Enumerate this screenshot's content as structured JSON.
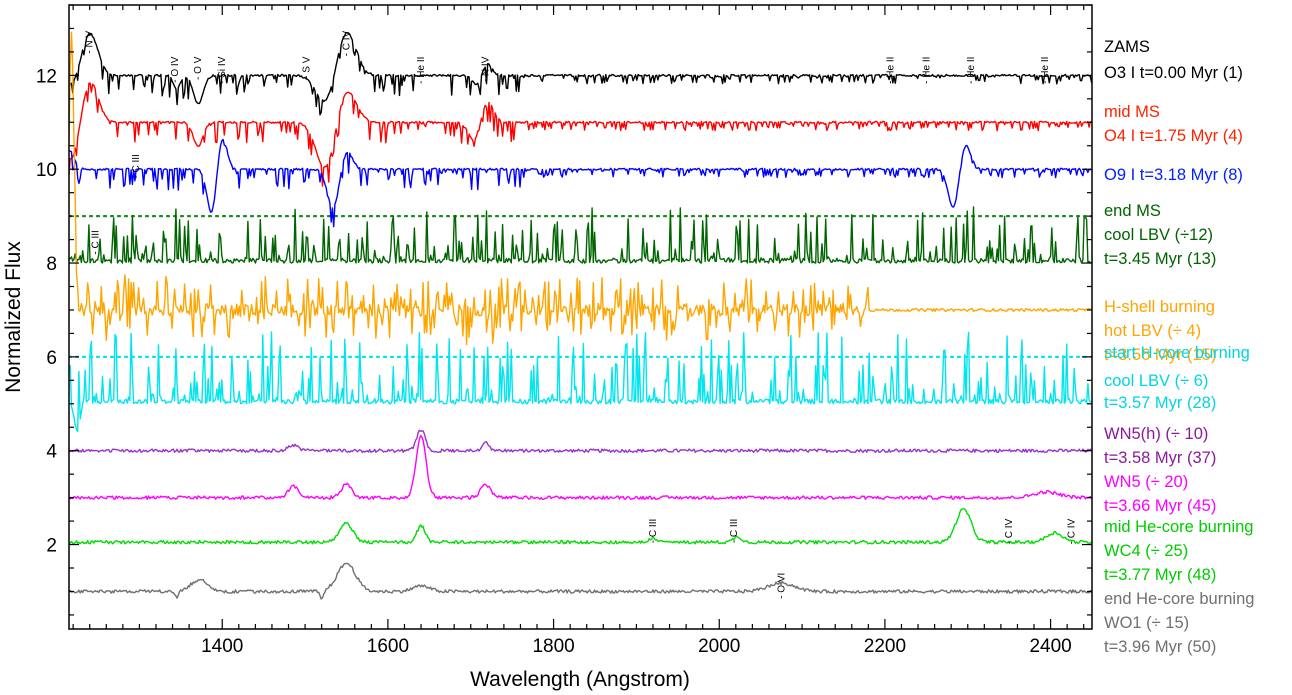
{
  "chart_data": {
    "type": "line",
    "xlabel": "Wavelength (Angstrom)",
    "ylabel": "Normalized Flux",
    "xlim": [
      1215,
      2450
    ],
    "ylim": [
      0.2,
      13.5
    ],
    "x_ticks": [
      1400,
      1600,
      1800,
      2000,
      2200,
      2400
    ],
    "y_ticks": [
      2,
      4,
      6,
      8,
      10,
      12
    ],
    "grid": false,
    "legend_placement": "right-outside",
    "line_labels": [
      {
        "text": "N V",
        "x": 1240,
        "y": 12.95
      },
      {
        "text": "O IV",
        "x": 1343,
        "y": 12.4
      },
      {
        "text": "O V",
        "x": 1371,
        "y": 12.4
      },
      {
        "text": "Si IV",
        "x": 1400,
        "y": 12.4
      },
      {
        "text": "S V",
        "x": 1502,
        "y": 12.4
      },
      {
        "text": "C IV",
        "x": 1550,
        "y": 12.95
      },
      {
        "text": "He II",
        "x": 1640,
        "y": 12.4
      },
      {
        "text": "N IV",
        "x": 1718,
        "y": 12.4
      },
      {
        "text": "He II",
        "x": 2207,
        "y": 12.4
      },
      {
        "text": "He II",
        "x": 2250,
        "y": 12.4
      },
      {
        "text": "He II",
        "x": 2304,
        "y": 12.4
      },
      {
        "text": "He II",
        "x": 2393,
        "y": 12.4
      },
      {
        "text": "C III",
        "x": 1296,
        "y": 10.32
      },
      {
        "text": "C III",
        "x": 1247,
        "y": 8.7
      },
      {
        "text": "C III",
        "x": 1920,
        "y": 2.55
      },
      {
        "text": "C III",
        "x": 2018,
        "y": 2.55
      },
      {
        "text": "C IV",
        "x": 2350,
        "y": 2.55
      },
      {
        "text": "C IV",
        "x": 2425,
        "y": 2.55
      },
      {
        "text": "O VI",
        "x": 2075,
        "y": 1.4
      }
    ],
    "series": [
      {
        "name": "O3 I t=0.00 Myr (1)",
        "color": "#000000",
        "baseline": 12.0,
        "style": "absorption",
        "features": [
          {
            "type": "pcygni",
            "x": 1240,
            "amp": 0.9,
            "abs": 0.25,
            "w": 14
          },
          {
            "type": "pcygni",
            "x": 1550,
            "amp": 0.95,
            "abs": 0.6,
            "w": 16
          },
          {
            "type": "pcygni",
            "x": 1720,
            "amp": 0.25,
            "abs": 0.2,
            "w": 8
          },
          {
            "type": "gauss",
            "x": 1371,
            "amp": -0.6,
            "w": 6
          },
          {
            "type": "gauss",
            "x": 1345,
            "amp": -0.3,
            "w": 4
          }
        ]
      },
      {
        "name": "O4 I  t=1.75 Myr (4)",
        "color": "#ff0000",
        "baseline": 11.0,
        "style": "absorption",
        "features": [
          {
            "type": "pcygni",
            "x": 1240,
            "amp": 0.9,
            "abs": 0.85,
            "w": 14
          },
          {
            "type": "pcygni",
            "x": 1550,
            "amp": 0.7,
            "abs": 1.0,
            "w": 16
          },
          {
            "type": "pcygni",
            "x": 1720,
            "amp": 0.45,
            "abs": 0.4,
            "w": 10
          },
          {
            "type": "gauss",
            "x": 1371,
            "amp": -0.5,
            "w": 6
          }
        ]
      },
      {
        "name": "O9 I   t=3.18 Myr (8)",
        "color": "#0000ff",
        "baseline": 10.0,
        "style": "absorption",
        "features": [
          {
            "type": "pcygni",
            "x": 1400,
            "amp": 0.7,
            "abs": 0.95,
            "w": 8
          },
          {
            "type": "pcygni",
            "x": 1550,
            "amp": 0.4,
            "abs": 0.85,
            "w": 10
          },
          {
            "type": "pcygni",
            "x": 2297,
            "amp": 0.55,
            "abs": 0.85,
            "w": 9
          },
          {
            "type": "gauss",
            "x": 1215,
            "amp": 0.4,
            "w": 6
          }
        ]
      },
      {
        "name": "cool LBV (÷12) t=3.45 Myr (13)",
        "color": "#006400",
        "baseline": 8.0,
        "style": "emission",
        "noise": 0.55,
        "features": []
      },
      {
        "name": "hot LBV (÷ 4) t=3.56 Myr (15)",
        "color": "#ffa500",
        "baseline": 7.0,
        "style": "mixed",
        "noise": 1.0,
        "noise_end": 2180,
        "features": [
          {
            "type": "gauss",
            "x": 1218,
            "amp": 6.0,
            "w": 3
          }
        ]
      },
      {
        "name": "cool LBV (÷ 6) t=3.57 Myr (28)",
        "color": "#00e5ee",
        "baseline": 5.0,
        "style": "emission",
        "noise": 0.7,
        "features": [
          {
            "type": "gauss",
            "x": 1225,
            "amp": -0.6,
            "w": 4
          }
        ]
      },
      {
        "name": "WN5(h) (÷ 10) t=3.58 Myr (37)",
        "color": "#9932cc",
        "baseline": 4.0,
        "style": "smooth",
        "features": [
          {
            "type": "gauss",
            "x": 1640,
            "amp": 0.45,
            "w": 5
          },
          {
            "type": "gauss",
            "x": 1718,
            "amp": 0.2,
            "w": 4
          },
          {
            "type": "gauss",
            "x": 1486,
            "amp": 0.12,
            "w": 6
          }
        ]
      },
      {
        "name": "WN5 (÷ 20) t=3.66 Myr (45)",
        "color": "#ff00ff",
        "baseline": 3.0,
        "style": "smooth",
        "features": [
          {
            "type": "gauss",
            "x": 1640,
            "amp": 1.3,
            "w": 6
          },
          {
            "type": "gauss",
            "x": 1718,
            "amp": 0.28,
            "w": 6
          },
          {
            "type": "gauss",
            "x": 1486,
            "amp": 0.25,
            "w": 6
          },
          {
            "type": "gauss",
            "x": 1550,
            "amp": 0.3,
            "w": 6
          },
          {
            "type": "gauss",
            "x": 2395,
            "amp": 0.12,
            "w": 15
          }
        ]
      },
      {
        "name": "WC4 (÷ 25) t=3.77 Myr (48)",
        "color": "#00dd00",
        "baseline": 2.05,
        "style": "smooth",
        "features": [
          {
            "type": "gauss",
            "x": 1550,
            "amp": 0.4,
            "w": 8
          },
          {
            "type": "gauss",
            "x": 1640,
            "amp": 0.35,
            "w": 5
          },
          {
            "type": "gauss",
            "x": 2295,
            "amp": 0.7,
            "w": 9
          },
          {
            "type": "gauss",
            "x": 2405,
            "amp": 0.2,
            "w": 10
          },
          {
            "type": "gauss",
            "x": 1920,
            "amp": 0.1,
            "w": 4
          },
          {
            "type": "gauss",
            "x": 2022,
            "amp": 0.12,
            "w": 5
          }
        ]
      },
      {
        "name": "WO1 (÷ 15) t=3.96 Myr (50)",
        "color": "#707070",
        "baseline": 1.0,
        "style": "smooth",
        "features": [
          {
            "type": "gauss",
            "x": 1550,
            "amp": 0.6,
            "w": 11
          },
          {
            "type": "gauss",
            "x": 1372,
            "amp": 0.25,
            "w": 10
          },
          {
            "type": "gauss",
            "x": 1640,
            "amp": 0.12,
            "w": 10
          },
          {
            "type": "gauss",
            "x": 2075,
            "amp": 0.18,
            "w": 16
          },
          {
            "type": "gauss",
            "x": 1345,
            "amp": -0.15,
            "w": 2
          },
          {
            "type": "gauss",
            "x": 1520,
            "amp": -0.2,
            "w": 2
          }
        ]
      }
    ],
    "reference_lines": [
      {
        "y": 9.0,
        "color": "#1a8c1a",
        "style": "dotted"
      },
      {
        "y": 6.0,
        "color": "#00e5ee",
        "style": "dotted"
      }
    ]
  },
  "legend": [
    {
      "text": "ZAMS",
      "color": "#000000"
    },
    {
      "text": "O3 I t=0.00 Myr (1)",
      "color": "#000000"
    },
    {
      "text": "mid MS",
      "color": "#ff2200"
    },
    {
      "text": "O4 I  t=1.75 Myr (4)",
      "color": "#ff2200"
    },
    {
      "text": "O9 I   t=3.18 Myr (8)",
      "color": "#0022ff"
    },
    {
      "text": "end MS",
      "color": "#006400"
    },
    {
      "text": "cool LBV (÷12)",
      "color": "#006400"
    },
    {
      "text": "t=3.45 Myr (13)",
      "color": "#006400"
    },
    {
      "text": "H-shell burning",
      "color": "#ffa500"
    },
    {
      "text": "hot LBV (÷ 4)",
      "color": "#ffa500"
    },
    {
      "text": "t=3.56 Myr (15)",
      "color": "#ffa500"
    },
    {
      "text": "start H-core burning",
      "color": "#00d6e0"
    },
    {
      "text": "cool LBV (÷ 6)",
      "color": "#00d6e0"
    },
    {
      "text": "t=3.57 Myr (28)",
      "color": "#00d6e0"
    },
    {
      "text": "WN5(h) (÷ 10)",
      "color": "#8b1a9b"
    },
    {
      "text": "t=3.58 Myr (37)",
      "color": "#8b1a9b"
    },
    {
      "text": "WN5 (÷ 20)",
      "color": "#ff00ff"
    },
    {
      "text": "t=3.66 Myr (45)",
      "color": "#ff00ff"
    },
    {
      "text": "mid He-core burning",
      "color": "#00cc00"
    },
    {
      "text": "WC4 (÷ 25)",
      "color": "#00cc00"
    },
    {
      "text": "t=3.77 Myr (48)",
      "color": "#00cc00"
    },
    {
      "text": "end He-core burning",
      "color": "#707070"
    },
    {
      "text": "WO1 (÷ 15)",
      "color": "#707070"
    },
    {
      "text": "t=3.96 Myr (50)",
      "color": "#707070"
    }
  ]
}
